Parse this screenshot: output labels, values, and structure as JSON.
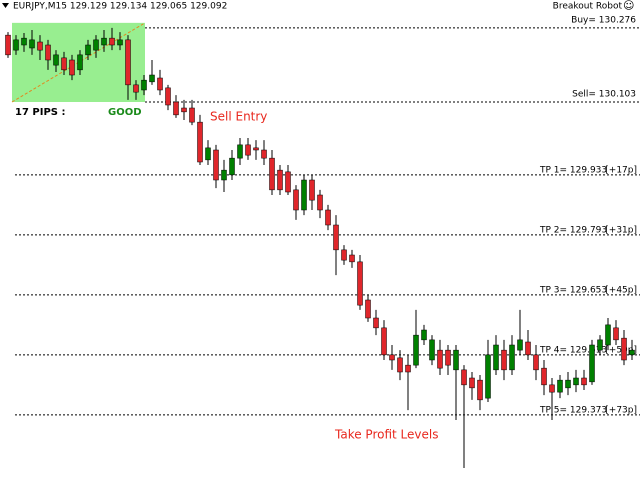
{
  "chart_data": {
    "type": "candlestick",
    "symbol_line": "EURJPY,M15 129.129 129.134 129.065 129.092",
    "robot": "Breakout Robot",
    "robot_icon": "☺",
    "pips_label": "17 PIPS :",
    "quality": "GOOD",
    "entry_note": "Sell Entry",
    "tp_note": "Take Profit Levels",
    "up_color": "#008000",
    "down_color": "#e0262b",
    "box_color": "#98ee90",
    "ylim": [
      129.221,
      130.341
    ],
    "levels": [
      {
        "label": "Buy= 130.276",
        "price": 130.276
      },
      {
        "label": "Sell= 130.103",
        "price": 130.103
      },
      {
        "label": "TP 1= 129.933",
        "tag": "[+17p]",
        "price": 129.933
      },
      {
        "label": "TP 2= 129.793",
        "tag": "[+31p]",
        "price": 129.793
      },
      {
        "label": "TP 3= 129.653",
        "tag": "[+45p]",
        "price": 129.653
      },
      {
        "label": "TP 4= 129.513",
        "tag": "[+59p]",
        "price": 129.513
      },
      {
        "label": "TP 5= 129.373",
        "tag": "[+73p]",
        "price": 129.373
      }
    ],
    "ohlc": [
      [
        130.259,
        130.266,
        130.206,
        130.213
      ],
      [
        130.224,
        130.259,
        130.213,
        130.248
      ],
      [
        130.236,
        130.264,
        130.22,
        130.252
      ],
      [
        130.229,
        130.271,
        130.213,
        130.248
      ],
      [
        130.243,
        130.259,
        130.201,
        130.224
      ],
      [
        130.236,
        130.248,
        130.178,
        130.201
      ],
      [
        130.189,
        130.224,
        130.173,
        130.213
      ],
      [
        130.206,
        130.22,
        130.166,
        130.178
      ],
      [
        130.201,
        130.213,
        130.154,
        130.166
      ],
      [
        130.178,
        130.224,
        130.166,
        130.213
      ],
      [
        130.213,
        130.248,
        130.201,
        130.236
      ],
      [
        130.224,
        130.259,
        130.206,
        130.248
      ],
      [
        130.236,
        130.271,
        130.22,
        130.252
      ],
      [
        130.252,
        130.276,
        130.224,
        130.236
      ],
      [
        130.236,
        130.266,
        130.224,
        130.248
      ],
      [
        130.248,
        130.259,
        130.108,
        130.143
      ],
      [
        130.143,
        130.154,
        130.108,
        130.126
      ],
      [
        130.131,
        130.166,
        130.119,
        130.154
      ],
      [
        130.15,
        130.201,
        130.143,
        130.166
      ],
      [
        130.159,
        130.178,
        130.119,
        130.131
      ],
      [
        130.136,
        130.143,
        130.084,
        130.096
      ],
      [
        130.103,
        130.119,
        130.066,
        130.073
      ],
      [
        130.089,
        130.108,
        130.061,
        130.08
      ],
      [
        130.089,
        130.108,
        130.049,
        130.056
      ],
      [
        130.056,
        130.073,
        129.956,
        129.963
      ],
      [
        129.968,
        130.014,
        129.956,
        129.996
      ],
      [
        129.991,
        130.003,
        129.902,
        129.921
      ],
      [
        129.921,
        129.968,
        129.893,
        129.944
      ],
      [
        129.933,
        129.991,
        129.921,
        129.972
      ],
      [
        129.972,
        130.019,
        129.956,
        130.003
      ],
      [
        130.003,
        130.019,
        129.968,
        129.979
      ],
      [
        129.996,
        130.014,
        129.968,
        129.991
      ],
      [
        129.991,
        130.014,
        129.956,
        129.972
      ],
      [
        129.972,
        129.991,
        129.886,
        129.898
      ],
      [
        129.944,
        129.956,
        129.886,
        129.898
      ],
      [
        129.94,
        129.956,
        129.886,
        129.893
      ],
      [
        129.898,
        129.909,
        129.828,
        129.851
      ],
      [
        129.851,
        129.933,
        129.839,
        129.921
      ],
      [
        129.921,
        129.933,
        129.851,
        129.874
      ],
      [
        129.886,
        129.898,
        129.832,
        129.851
      ],
      [
        129.851,
        129.863,
        129.804,
        129.816
      ],
      [
        129.816,
        129.839,
        129.699,
        129.758
      ],
      [
        129.758,
        129.769,
        129.723,
        129.734
      ],
      [
        129.746,
        129.758,
        129.716,
        129.73
      ],
      [
        129.73,
        129.746,
        129.618,
        129.629
      ],
      [
        129.641,
        129.653,
        129.59,
        129.599
      ],
      [
        129.599,
        129.618,
        129.559,
        129.576
      ],
      [
        129.576,
        129.594,
        129.501,
        129.513
      ],
      [
        129.513,
        129.536,
        129.478,
        129.501
      ],
      [
        129.506,
        129.524,
        129.454,
        129.473
      ],
      [
        129.489,
        129.513,
        129.384,
        129.473
      ],
      [
        129.489,
        129.618,
        129.482,
        129.559
      ],
      [
        129.548,
        129.583,
        129.536,
        129.571
      ],
      [
        129.501,
        129.559,
        129.489,
        129.548
      ],
      [
        129.524,
        129.548,
        129.466,
        129.482
      ],
      [
        129.524,
        129.536,
        129.466,
        129.489
      ],
      [
        129.478,
        129.536,
        129.361,
        129.524
      ],
      [
        129.478,
        129.489,
        129.249,
        129.443
      ],
      [
        129.459,
        129.473,
        129.408,
        129.436
      ],
      [
        129.454,
        129.466,
        129.384,
        129.408
      ],
      [
        129.412,
        129.548,
        129.403,
        129.513
      ],
      [
        129.478,
        129.559,
        129.466,
        129.536
      ],
      [
        129.524,
        129.548,
        129.454,
        129.478
      ],
      [
        129.478,
        129.559,
        129.466,
        129.536
      ],
      [
        129.524,
        129.618,
        129.513,
        129.548
      ],
      [
        129.543,
        129.571,
        129.501,
        129.513
      ],
      [
        129.513,
        129.536,
        129.454,
        129.478
      ],
      [
        129.482,
        129.501,
        129.419,
        129.443
      ],
      [
        129.443,
        129.459,
        129.361,
        129.426
      ],
      [
        129.426,
        129.466,
        129.412,
        129.454
      ],
      [
        129.436,
        129.473,
        129.419,
        129.454
      ],
      [
        129.443,
        129.478,
        129.426,
        129.459
      ],
      [
        129.459,
        129.478,
        129.431,
        129.443
      ],
      [
        129.45,
        129.548,
        129.443,
        129.536
      ],
      [
        129.524,
        129.559,
        129.513,
        129.548
      ],
      [
        129.536,
        129.599,
        129.524,
        129.583
      ],
      [
        129.576,
        129.594,
        129.536,
        129.548
      ],
      [
        129.552,
        129.571,
        129.489,
        129.501
      ],
      [
        129.513,
        129.548,
        129.501,
        129.524
      ]
    ]
  }
}
